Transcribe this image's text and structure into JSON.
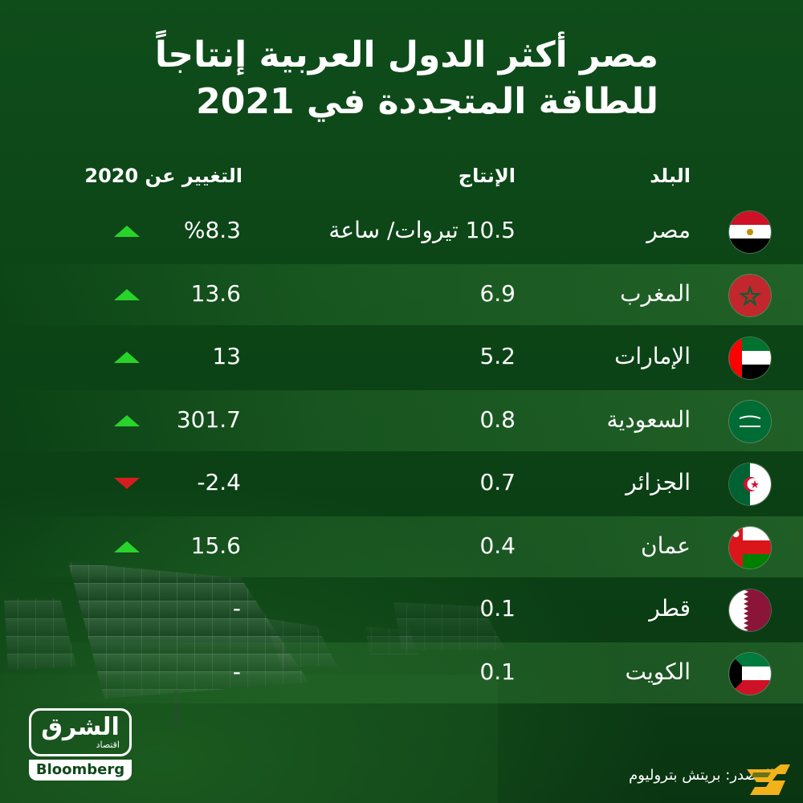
{
  "title_line1": "مصر أكثر الدول العربية إنتاجاً",
  "title_line2": "للطاقة المتجددة في 2021",
  "headers": {
    "country": "البلد",
    "production": "الإنتاج",
    "change": "التغيير عن 2020"
  },
  "chart_data": {
    "type": "table",
    "columns": [
      "البلد",
      "الإنتاج",
      "التغيير عن 2020"
    ],
    "rows": [
      {
        "country": "مصر",
        "production": "10.5 تيروات/ ساعة",
        "change": "%8.3",
        "trend": "up",
        "flag": "egypt-flag"
      },
      {
        "country": "المغرب",
        "production": "6.9",
        "change": "13.6",
        "trend": "up",
        "flag": "morocco-flag"
      },
      {
        "country": "الإمارات",
        "production": "5.2",
        "change": "13",
        "trend": "up",
        "flag": "uae-flag"
      },
      {
        "country": "السعودية",
        "production": "0.8",
        "change": "301.7",
        "trend": "up",
        "flag": "saudi-flag"
      },
      {
        "country": "الجزائر",
        "production": "0.7",
        "change": "-2.4",
        "trend": "down",
        "flag": "algeria-flag"
      },
      {
        "country": "عمان",
        "production": "0.4",
        "change": "15.6",
        "trend": "up",
        "flag": "oman-flag"
      },
      {
        "country": "قطر",
        "production": "0.1",
        "change": "-",
        "trend": "none",
        "flag": "qatar-flag"
      },
      {
        "country": "الكويت",
        "production": "0.1",
        "change": "-",
        "trend": "none",
        "flag": "kuwait-flag"
      }
    ]
  },
  "logo": {
    "arabic": "الشرق",
    "sub": "اقتصاد",
    "partner": "Bloomberg"
  },
  "source": "المصدر: بريتش بتروليوم",
  "colors": {
    "background": "#0f4a19",
    "up": "#29d42a",
    "down": "#d41e1e"
  }
}
